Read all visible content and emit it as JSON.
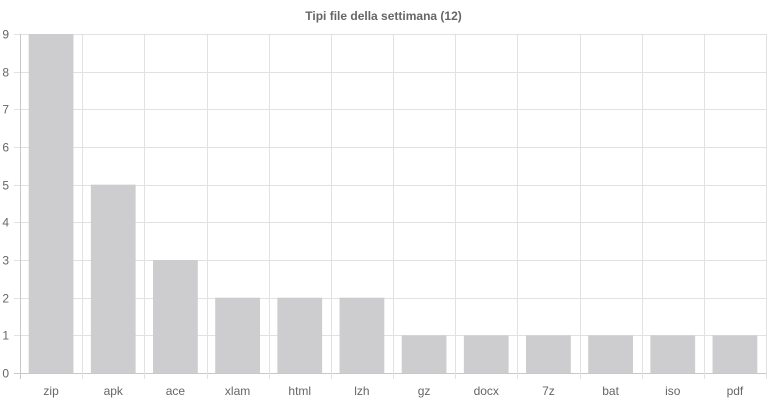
{
  "chart_data": {
    "type": "bar",
    "title": "Tipi file della settimana (12)",
    "categories": [
      "zip",
      "apk",
      "ace",
      "xlam",
      "html",
      "lzh",
      "gz",
      "docx",
      "7z",
      "bat",
      "iso",
      "pdf"
    ],
    "values": [
      9,
      5,
      3,
      2,
      2,
      2,
      1,
      1,
      1,
      1,
      1,
      1
    ],
    "y_ticks": [
      "0",
      "1",
      "2",
      "3",
      "4",
      "5",
      "6",
      "7",
      "8",
      "9"
    ],
    "ylim": [
      0,
      9
    ],
    "grid": true,
    "legend": "none",
    "bar_color": "#cdcdcf"
  }
}
